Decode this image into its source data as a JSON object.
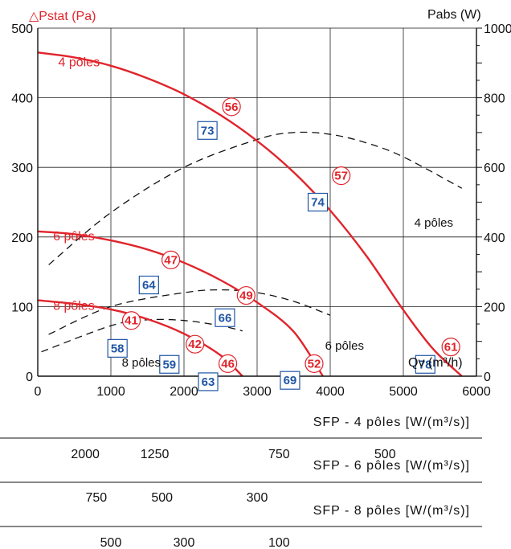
{
  "chart_data": {
    "type": "line",
    "x_ticks": [
      "0",
      "1000",
      "2000",
      "3000",
      "4000",
      "5000",
      "6000"
    ],
    "xlim": [
      0,
      6000
    ],
    "ylim_left": [
      0,
      500
    ],
    "ylim_right": [
      0,
      1000
    ],
    "y_left_ticks": [
      "0",
      "100",
      "200",
      "300",
      "400",
      "500"
    ],
    "y_right_ticks": [
      "0",
      "200",
      "400",
      "600",
      "800",
      "1000"
    ],
    "ylabel_left": "△Pstat (Pa)",
    "ylabel_right": "Pabs (W)",
    "xlabel": "Qv (m³/h)",
    "grid": true,
    "pressure_curves": [
      {
        "name": "4 pôles",
        "x": [
          0,
          500,
          1000,
          1500,
          2000,
          2500,
          3000,
          3500,
          4000,
          4500,
          5000,
          5400,
          5800
        ],
        "y": [
          465,
          458,
          446,
          428,
          405,
          375,
          338,
          293,
          238,
          172,
          95,
          40,
          0
        ]
      },
      {
        "name": "6 pôles",
        "x": [
          0,
          500,
          1000,
          1500,
          2000,
          2500,
          3000,
          3500,
          3900
        ],
        "y": [
          208,
          204,
          195,
          182,
          163,
          138,
          106,
          64,
          0
        ]
      },
      {
        "name": "8 pôles",
        "x": [
          0,
          500,
          1000,
          1500,
          2000,
          2500,
          2800
        ],
        "y": [
          109,
          104,
          96,
          82,
          61,
          30,
          0
        ]
      }
    ],
    "power_curves": [
      {
        "name": "4 pôles",
        "x": [
          150,
          1000,
          2000,
          3000,
          3500,
          4000,
          4500,
          5000,
          5800
        ],
        "y": [
          320,
          470,
          600,
          680,
          700,
          695,
          670,
          630,
          540
        ]
      },
      {
        "name": "6 pôles",
        "x": [
          150,
          1000,
          2000,
          2500,
          3000,
          3500,
          4000
        ],
        "y": [
          120,
          200,
          240,
          248,
          240,
          215,
          175
        ]
      },
      {
        "name": "8 pôles",
        "x": [
          50,
          1000,
          1500,
          2000,
          2500,
          2800
        ],
        "y": [
          70,
          145,
          162,
          160,
          145,
          130
        ]
      }
    ],
    "circle_markers": [
      {
        "label": "56",
        "x": 2650,
        "y": 387
      },
      {
        "label": "57",
        "x": 4150,
        "y": 288
      },
      {
        "label": "47",
        "x": 1820,
        "y": 167
      },
      {
        "label": "49",
        "x": 2850,
        "y": 116
      },
      {
        "label": "41",
        "x": 1280,
        "y": 80
      },
      {
        "label": "42",
        "x": 2150,
        "y": 46
      },
      {
        "label": "46",
        "x": 2600,
        "y": 18
      },
      {
        "label": "52",
        "x": 3780,
        "y": 18
      },
      {
        "label": "61",
        "x": 5650,
        "y": 42
      }
    ],
    "box_markers": [
      {
        "label": "73",
        "x": 2320,
        "y": 353
      },
      {
        "label": "74",
        "x": 3830,
        "y": 250
      },
      {
        "label": "64",
        "x": 1520,
        "y": 131
      },
      {
        "label": "66",
        "x": 2560,
        "y": 84
      },
      {
        "label": "58",
        "x": 1090,
        "y": 40
      },
      {
        "label": "59",
        "x": 1800,
        "y": 17
      },
      {
        "label": "63",
        "x": 2330,
        "y": -8
      },
      {
        "label": "69",
        "x": 3450,
        "y": -6
      },
      {
        "label": "78",
        "x": 5300,
        "y": 17
      }
    ],
    "curve_labels": [
      {
        "text": "4 pôles",
        "x": 280,
        "y": 445,
        "color": "red"
      },
      {
        "text": "6 pôles",
        "x": 210,
        "y": 195,
        "color": "red"
      },
      {
        "text": "8 pôles",
        "x": 210,
        "y": 95,
        "color": "red"
      },
      {
        "text": "4 pôles",
        "x": 5150,
        "y": 215,
        "color": "black"
      },
      {
        "text": "6 pôles",
        "x": 3930,
        "y": 38,
        "color": "black"
      },
      {
        "text": "8 pôles",
        "x": 1150,
        "y": 14,
        "color": "black"
      }
    ]
  },
  "sfp_scales": [
    {
      "title": "SFP - 4 pôles [W/(m³/s)]",
      "values": [
        {
          "text": "2000",
          "x": 650
        },
        {
          "text": "1250",
          "x": 1600
        },
        {
          "text": "750",
          "x": 3300
        },
        {
          "text": "500",
          "x": 4750
        }
      ]
    },
    {
      "title": "SFP - 6 pôles [W/(m³/s)]",
      "values": [
        {
          "text": "750",
          "x": 800
        },
        {
          "text": "500",
          "x": 1700
        },
        {
          "text": "300",
          "x": 3000
        }
      ]
    },
    {
      "title": "SFP - 8 pôles [W/(m³/s)]",
      "values": [
        {
          "text": "500",
          "x": 1000
        },
        {
          "text": "300",
          "x": 2000
        },
        {
          "text": "100",
          "x": 3300
        }
      ]
    }
  ],
  "colors": {
    "red": "#e0242b",
    "blue": "#1f56a6",
    "grid": "#222222",
    "dash": "#111111"
  }
}
